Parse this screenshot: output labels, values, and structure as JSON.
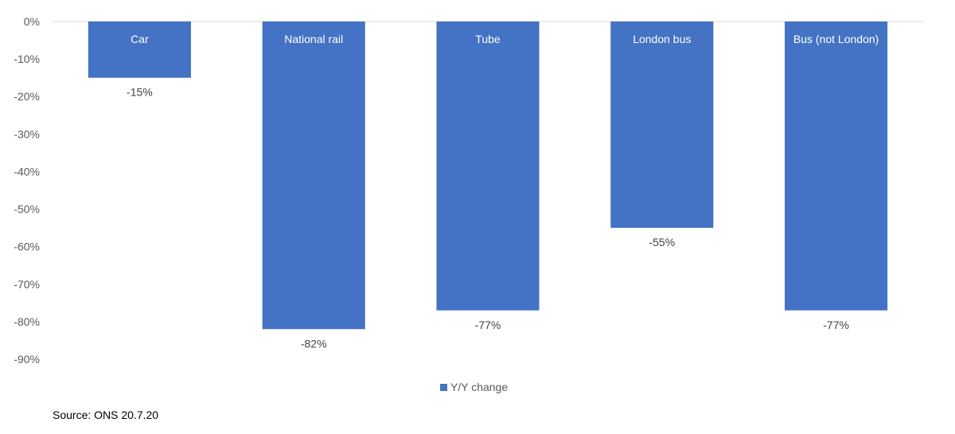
{
  "chart_data": {
    "type": "bar",
    "categories": [
      "Car",
      "National rail",
      "Tube",
      "London bus",
      "Bus (not London)"
    ],
    "series": [
      {
        "name": "Y/Y change",
        "values": [
          -15,
          -82,
          -77,
          -55,
          -77
        ]
      }
    ],
    "data_labels": [
      "-15%",
      "-82%",
      "-77%",
      "-55%",
      "-77%"
    ],
    "ylim": [
      -90,
      0
    ],
    "y_ticks": [
      0,
      -10,
      -20,
      -30,
      -40,
      -50,
      -60,
      -70,
      -80,
      -90
    ],
    "y_tick_labels": [
      "0%",
      "-10%",
      "-20%",
      "-30%",
      "-40%",
      "-50%",
      "-60%",
      "-70%",
      "-80%",
      "-90%"
    ],
    "category_label_position": "inside-top",
    "legend_position": "bottom",
    "grid": false,
    "bar_color": "#4472c4"
  },
  "legend": {
    "label": "Y/Y change"
  },
  "source": {
    "text": "Source: ONS 20.7.20"
  }
}
